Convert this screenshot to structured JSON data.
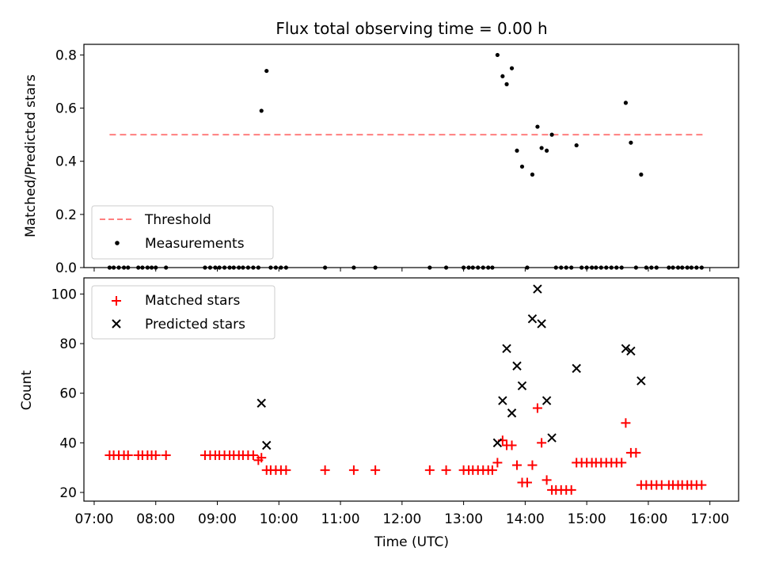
{
  "chart_data": [
    {
      "type": "scatter",
      "title": "Flux total observing time = 0.00 h",
      "xlabel": "",
      "ylabel": "Matched/Predicted stars",
      "xlim": [
        "06:50",
        "17:28"
      ],
      "ylim": [
        0,
        0.84
      ],
      "yticks": [
        "0.0",
        "0.2",
        "0.4",
        "0.6",
        "0.8"
      ],
      "grid": false,
      "legend": "lower-left",
      "threshold": {
        "name": "Threshold",
        "value": 0.5,
        "x_start": "07:15",
        "x_end": "16:55",
        "color": "#ff7f7f"
      },
      "series": [
        {
          "name": "Measurements",
          "marker": "dot",
          "color": "#000000",
          "points": [
            [
              "07:15",
              0
            ],
            [
              "07:19",
              0
            ],
            [
              "07:24",
              0
            ],
            [
              "07:29",
              0
            ],
            [
              "07:33",
              0
            ],
            [
              "07:43",
              0
            ],
            [
              "07:47",
              0
            ],
            [
              "07:52",
              0
            ],
            [
              "07:56",
              0
            ],
            [
              "08:00",
              0
            ],
            [
              "08:10",
              0
            ],
            [
              "08:48",
              0
            ],
            [
              "08:53",
              0
            ],
            [
              "08:58",
              0
            ],
            [
              "09:02",
              0
            ],
            [
              "09:07",
              0
            ],
            [
              "09:12",
              0
            ],
            [
              "09:16",
              0
            ],
            [
              "09:21",
              0
            ],
            [
              "09:25",
              0
            ],
            [
              "09:30",
              0
            ],
            [
              "09:35",
              0
            ],
            [
              "09:40",
              0
            ],
            [
              "09:43",
              0.59
            ],
            [
              "09:48",
              0.74
            ],
            [
              "09:52",
              0
            ],
            [
              "09:57",
              0
            ],
            [
              "10:02",
              0
            ],
            [
              "10:07",
              0
            ],
            [
              "10:45",
              0
            ],
            [
              "11:13",
              0
            ],
            [
              "11:34",
              0
            ],
            [
              "12:27",
              0
            ],
            [
              "12:43",
              0
            ],
            [
              "13:00",
              0
            ],
            [
              "13:05",
              0
            ],
            [
              "13:09",
              0
            ],
            [
              "13:14",
              0
            ],
            [
              "13:19",
              0
            ],
            [
              "13:24",
              0
            ],
            [
              "13:28",
              0
            ],
            [
              "13:33",
              0.8
            ],
            [
              "13:38",
              0.72
            ],
            [
              "13:42",
              0.69
            ],
            [
              "13:47",
              0.75
            ],
            [
              "13:52",
              0.44
            ],
            [
              "13:57",
              0.38
            ],
            [
              "14:02",
              0
            ],
            [
              "14:07",
              0.35
            ],
            [
              "14:12",
              0.53
            ],
            [
              "14:16",
              0.45
            ],
            [
              "14:21",
              0.44
            ],
            [
              "14:26",
              0.5
            ],
            [
              "14:30",
              0
            ],
            [
              "14:35",
              0
            ],
            [
              "14:40",
              0
            ],
            [
              "14:45",
              0
            ],
            [
              "14:50",
              0.46
            ],
            [
              "14:55",
              0
            ],
            [
              "15:00",
              0
            ],
            [
              "15:05",
              0
            ],
            [
              "15:09",
              0
            ],
            [
              "15:14",
              0
            ],
            [
              "15:19",
              0
            ],
            [
              "15:24",
              0
            ],
            [
              "15:29",
              0
            ],
            [
              "15:34",
              0
            ],
            [
              "15:38",
              0.62
            ],
            [
              "15:43",
              0.47
            ],
            [
              "15:48",
              0
            ],
            [
              "15:53",
              0.35
            ],
            [
              "15:58",
              0
            ],
            [
              "16:03",
              0
            ],
            [
              "16:08",
              0
            ],
            [
              "16:20",
              0
            ],
            [
              "16:24",
              0
            ],
            [
              "16:29",
              0
            ],
            [
              "16:33",
              0
            ],
            [
              "16:38",
              0
            ],
            [
              "16:42",
              0
            ],
            [
              "16:47",
              0
            ],
            [
              "16:52",
              0
            ]
          ]
        }
      ]
    },
    {
      "type": "scatter",
      "title": "",
      "xlabel": "Time (UTC)",
      "ylabel": "Count",
      "xlim": [
        "06:50",
        "17:28"
      ],
      "ylim": [
        16.5,
        106.5
      ],
      "xticks": [
        "07:00",
        "08:00",
        "09:00",
        "10:00",
        "11:00",
        "12:00",
        "13:00",
        "14:00",
        "15:00",
        "16:00",
        "17:00"
      ],
      "yticks": [
        "20",
        "40",
        "60",
        "80",
        "100"
      ],
      "grid": false,
      "legend": "upper-left",
      "series": [
        {
          "name": "Matched stars",
          "marker": "plus",
          "color": "#ff0000",
          "points": [
            [
              "07:15",
              35
            ],
            [
              "07:19",
              35
            ],
            [
              "07:24",
              35
            ],
            [
              "07:29",
              35
            ],
            [
              "07:33",
              35
            ],
            [
              "07:43",
              35
            ],
            [
              "07:47",
              35
            ],
            [
              "07:52",
              35
            ],
            [
              "07:56",
              35
            ],
            [
              "08:00",
              35
            ],
            [
              "08:10",
              35
            ],
            [
              "08:48",
              35
            ],
            [
              "08:53",
              35
            ],
            [
              "08:58",
              35
            ],
            [
              "09:02",
              35
            ],
            [
              "09:07",
              35
            ],
            [
              "09:12",
              35
            ],
            [
              "09:16",
              35
            ],
            [
              "09:21",
              35
            ],
            [
              "09:25",
              35
            ],
            [
              "09:30",
              35
            ],
            [
              "09:35",
              35
            ],
            [
              "09:40",
              33
            ],
            [
              "09:43",
              34
            ],
            [
              "09:48",
              29
            ],
            [
              "09:52",
              29
            ],
            [
              "09:57",
              29
            ],
            [
              "10:02",
              29
            ],
            [
              "10:07",
              29
            ],
            [
              "10:45",
              29
            ],
            [
              "11:13",
              29
            ],
            [
              "11:34",
              29
            ],
            [
              "12:27",
              29
            ],
            [
              "12:43",
              29
            ],
            [
              "13:00",
              29
            ],
            [
              "13:05",
              29
            ],
            [
              "13:09",
              29
            ],
            [
              "13:14",
              29
            ],
            [
              "13:19",
              29
            ],
            [
              "13:24",
              29
            ],
            [
              "13:28",
              29
            ],
            [
              "13:33",
              32
            ],
            [
              "13:38",
              41
            ],
            [
              "13:42",
              39
            ],
            [
              "13:47",
              39
            ],
            [
              "13:52",
              31
            ],
            [
              "13:57",
              24
            ],
            [
              "14:02",
              24
            ],
            [
              "14:07",
              31
            ],
            [
              "14:12",
              54
            ],
            [
              "14:16",
              40
            ],
            [
              "14:21",
              25
            ],
            [
              "14:26",
              21
            ],
            [
              "14:30",
              21
            ],
            [
              "14:35",
              21
            ],
            [
              "14:40",
              21
            ],
            [
              "14:45",
              21
            ],
            [
              "14:50",
              32
            ],
            [
              "14:55",
              32
            ],
            [
              "15:00",
              32
            ],
            [
              "15:05",
              32
            ],
            [
              "15:09",
              32
            ],
            [
              "15:14",
              32
            ],
            [
              "15:19",
              32
            ],
            [
              "15:24",
              32
            ],
            [
              "15:29",
              32
            ],
            [
              "15:34",
              32
            ],
            [
              "15:38",
              48
            ],
            [
              "15:43",
              36
            ],
            [
              "15:48",
              36
            ],
            [
              "15:53",
              23
            ],
            [
              "15:58",
              23
            ],
            [
              "16:03",
              23
            ],
            [
              "16:08",
              23
            ],
            [
              "16:13",
              23
            ],
            [
              "16:20",
              23
            ],
            [
              "16:24",
              23
            ],
            [
              "16:29",
              23
            ],
            [
              "16:33",
              23
            ],
            [
              "16:38",
              23
            ],
            [
              "16:42",
              23
            ],
            [
              "16:47",
              23
            ],
            [
              "16:52",
              23
            ]
          ]
        },
        {
          "name": "Predicted stars",
          "marker": "x",
          "color": "#000000",
          "points": [
            [
              "09:43",
              56
            ],
            [
              "09:48",
              39
            ],
            [
              "13:33",
              40
            ],
            [
              "13:38",
              57
            ],
            [
              "13:42",
              78
            ],
            [
              "13:47",
              52
            ],
            [
              "13:52",
              71
            ],
            [
              "13:57",
              63
            ],
            [
              "14:07",
              90
            ],
            [
              "14:12",
              102
            ],
            [
              "14:16",
              88
            ],
            [
              "14:21",
              57
            ],
            [
              "14:26",
              42
            ],
            [
              "14:50",
              70
            ],
            [
              "15:38",
              78
            ],
            [
              "15:43",
              77
            ],
            [
              "15:53",
              65
            ]
          ]
        }
      ]
    }
  ]
}
